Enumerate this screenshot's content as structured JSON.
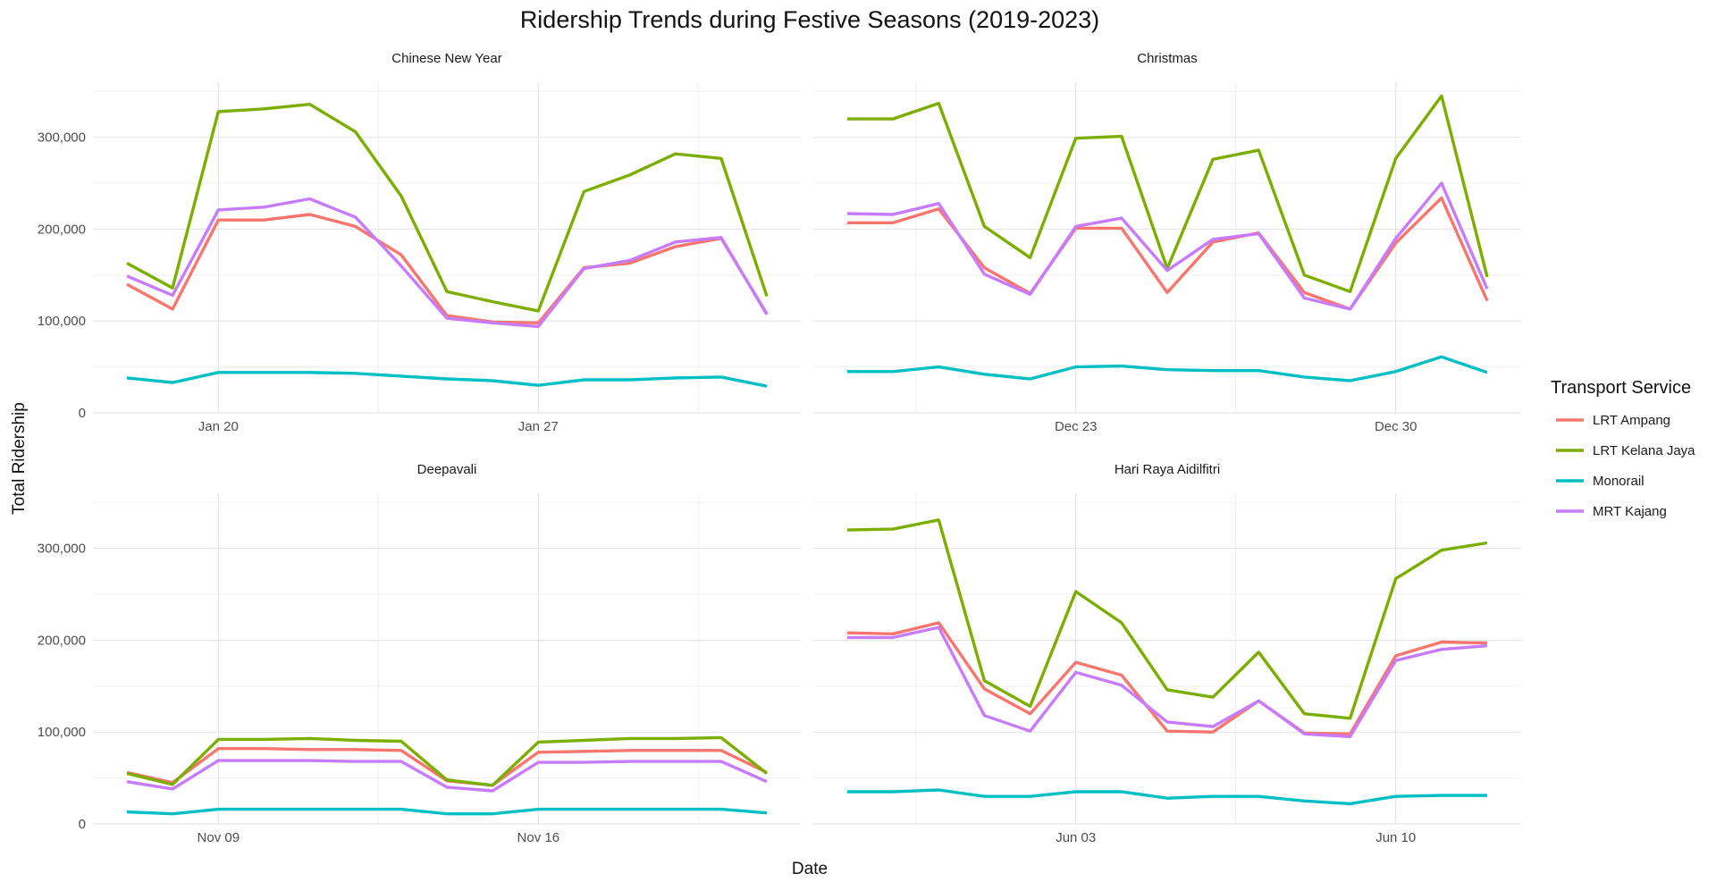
{
  "figure": {
    "title": "Ridership Trends during Festive Seasons (2019-2023)",
    "xlabel": "Date",
    "ylabel": "Total Ridership",
    "legend_title": "Transport Service",
    "legend_placement": "right"
  },
  "series_info": [
    {
      "name": "LRT Ampang",
      "color": "#F8766D"
    },
    {
      "name": "LRT Kelana Jaya",
      "color": "#7CAE00"
    },
    {
      "name": "Monorail",
      "color": "#00BFC4"
    },
    {
      "name": "MRT Kajang",
      "color": "#C77CFF"
    }
  ],
  "chart_data": [
    {
      "type": "line",
      "title": "Chinese New Year",
      "xlabel": "Date",
      "ylabel": "Total Ridership",
      "ylim": [
        0,
        360000
      ],
      "yticks": [
        0,
        100000,
        200000,
        300000
      ],
      "ytick_labels": [
        "0",
        "100,000",
        "200,000",
        "300,000"
      ],
      "x": [
        "Jan 18",
        "Jan 19",
        "Jan 20",
        "Jan 21",
        "Jan 22",
        "Jan 23",
        "Jan 24",
        "Jan 25",
        "Jan 26",
        "Jan 27",
        "Jan 28",
        "Jan 29",
        "Jan 30",
        "Jan 31",
        "Feb 01"
      ],
      "xticks": [
        "Jan 20",
        "Jan 27"
      ],
      "grid": true,
      "series": [
        {
          "name": "LRT Ampang",
          "values": [
            140000,
            113000,
            210000,
            210000,
            216000,
            203000,
            172000,
            106000,
            99000,
            98000,
            158000,
            163000,
            181000,
            190000,
            108000
          ]
        },
        {
          "name": "LRT Kelana Jaya",
          "values": [
            163000,
            136000,
            328000,
            331000,
            336000,
            306000,
            236000,
            132000,
            121000,
            111000,
            241000,
            259000,
            282000,
            277000,
            127000
          ]
        },
        {
          "name": "Monorail",
          "values": [
            38000,
            33000,
            44000,
            44000,
            44000,
            43000,
            40000,
            37000,
            35000,
            30000,
            36000,
            36000,
            38000,
            39000,
            29000
          ]
        },
        {
          "name": "MRT Kajang",
          "values": [
            149000,
            128000,
            221000,
            224000,
            233000,
            213000,
            160000,
            103000,
            98000,
            94000,
            157000,
            166000,
            186000,
            191000,
            107000
          ]
        }
      ]
    },
    {
      "type": "line",
      "title": "Christmas",
      "xlabel": "Date",
      "ylabel": "Total Ridership",
      "ylim": [
        0,
        360000
      ],
      "yticks": [
        0,
        100000,
        200000,
        300000
      ],
      "ytick_labels": [
        "0",
        "100,000",
        "200,000",
        "300,000"
      ],
      "x": [
        "Dec 18",
        "Dec 19",
        "Dec 20",
        "Dec 21",
        "Dec 22",
        "Dec 23",
        "Dec 24",
        "Dec 25",
        "Dec 26",
        "Dec 27",
        "Dec 28",
        "Dec 29",
        "Dec 30",
        "Dec 31",
        "Jan 01"
      ],
      "xticks": [
        "Dec 23",
        "Dec 30"
      ],
      "grid": true,
      "series": [
        {
          "name": "LRT Ampang",
          "values": [
            207000,
            207000,
            222000,
            158000,
            130000,
            201000,
            201000,
            131000,
            186000,
            196000,
            131000,
            113000,
            185000,
            234000,
            122000
          ]
        },
        {
          "name": "LRT Kelana Jaya",
          "values": [
            320000,
            320000,
            337000,
            203000,
            169000,
            299000,
            301000,
            157000,
            276000,
            286000,
            150000,
            132000,
            277000,
            345000,
            148000
          ]
        },
        {
          "name": "Monorail",
          "values": [
            45000,
            45000,
            50000,
            42000,
            37000,
            50000,
            51000,
            47000,
            46000,
            46000,
            39000,
            35000,
            45000,
            61000,
            44000
          ]
        },
        {
          "name": "MRT Kajang",
          "values": [
            217000,
            216000,
            228000,
            151000,
            129000,
            203000,
            212000,
            155000,
            189000,
            195000,
            125000,
            113000,
            190000,
            250000,
            135000
          ]
        }
      ]
    },
    {
      "type": "line",
      "title": "Deepavali",
      "xlabel": "Date",
      "ylabel": "Total Ridership",
      "ylim": [
        0,
        360000
      ],
      "yticks": [
        0,
        100000,
        200000,
        300000
      ],
      "ytick_labels": [
        "0",
        "100,000",
        "200,000",
        "300,000"
      ],
      "x": [
        "Nov 07",
        "Nov 08",
        "Nov 09",
        "Nov 10",
        "Nov 11",
        "Nov 12",
        "Nov 13",
        "Nov 14",
        "Nov 15",
        "Nov 16",
        "Nov 17",
        "Nov 18",
        "Nov 19",
        "Nov 20",
        "Nov 21"
      ],
      "xticks": [
        "Nov 09",
        "Nov 16"
      ],
      "grid": true,
      "series": [
        {
          "name": "LRT Ampang",
          "values": [
            56000,
            45000,
            82000,
            82000,
            81000,
            81000,
            80000,
            47000,
            42000,
            78000,
            79000,
            80000,
            80000,
            80000,
            56000
          ]
        },
        {
          "name": "LRT Kelana Jaya",
          "values": [
            55000,
            43000,
            92000,
            92000,
            93000,
            91000,
            90000,
            48000,
            42000,
            89000,
            91000,
            93000,
            93000,
            94000,
            55000
          ]
        },
        {
          "name": "Monorail",
          "values": [
            13000,
            11000,
            16000,
            16000,
            16000,
            16000,
            16000,
            11000,
            11000,
            16000,
            16000,
            16000,
            16000,
            16000,
            12000
          ]
        },
        {
          "name": "MRT Kajang",
          "values": [
            46000,
            38000,
            69000,
            69000,
            69000,
            68000,
            68000,
            40000,
            36000,
            67000,
            67000,
            68000,
            68000,
            68000,
            46000
          ]
        }
      ]
    },
    {
      "type": "line",
      "title": "Hari Raya Aidilfitri",
      "xlabel": "Date",
      "ylabel": "Total Ridership",
      "ylim": [
        0,
        360000
      ],
      "yticks": [
        0,
        100000,
        200000,
        300000
      ],
      "ytick_labels": [
        "0",
        "100,000",
        "200,000",
        "300,000"
      ],
      "x": [
        "May 29",
        "May 30",
        "May 31",
        "Jun 01",
        "Jun 02",
        "Jun 03",
        "Jun 04",
        "Jun 05",
        "Jun 06",
        "Jun 07",
        "Jun 08",
        "Jun 09",
        "Jun 10",
        "Jun 11",
        "Jun 12"
      ],
      "xticks": [
        "Jun 03",
        "Jun 10"
      ],
      "grid": true,
      "series": [
        {
          "name": "LRT Ampang",
          "values": [
            208000,
            207000,
            219000,
            147000,
            120000,
            176000,
            162000,
            101000,
            100000,
            134000,
            99000,
            98000,
            183000,
            198000,
            197000
          ]
        },
        {
          "name": "LRT Kelana Jaya",
          "values": [
            320000,
            321000,
            331000,
            156000,
            128000,
            253000,
            219000,
            146000,
            138000,
            187000,
            120000,
            115000,
            267000,
            298000,
            306000
          ]
        },
        {
          "name": "Monorail",
          "values": [
            35000,
            35000,
            37000,
            30000,
            30000,
            35000,
            35000,
            28000,
            30000,
            30000,
            25000,
            22000,
            30000,
            31000,
            31000
          ]
        },
        {
          "name": "MRT Kajang",
          "values": [
            203000,
            203000,
            214000,
            118000,
            101000,
            165000,
            151000,
            111000,
            106000,
            134000,
            98000,
            95000,
            178000,
            190000,
            194000
          ]
        }
      ]
    }
  ]
}
